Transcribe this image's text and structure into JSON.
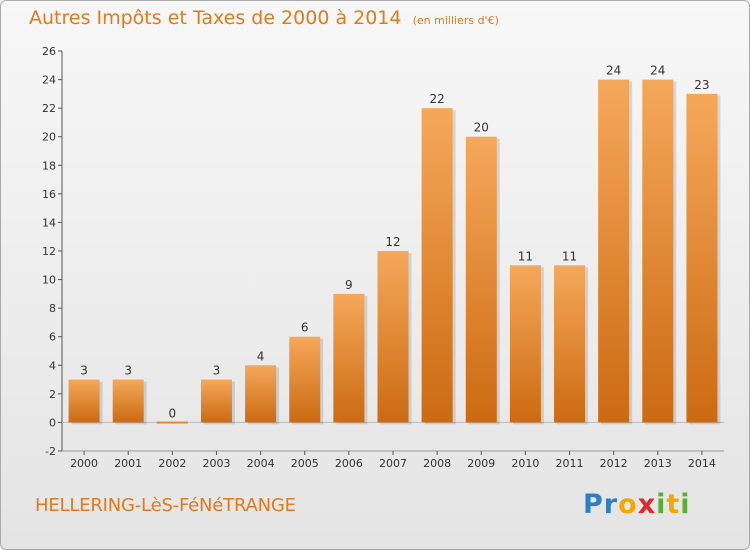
{
  "header": {
    "title": "Autres Impôts et Taxes de 2000 à 2014",
    "subtitle": "(en milliers d'€)"
  },
  "footer": {
    "city": "HELLERING-LèS-FéNéTRANGE",
    "logo": "Proxiti"
  },
  "colors": {
    "title": "#e07a1f",
    "bar_light": "#f5a85a",
    "bar_dark": "#cc6a12",
    "axis": "#555555"
  },
  "chart_data": {
    "type": "bar",
    "title": "Autres Impôts et Taxes de 2000 à 2014",
    "subtitle": "(en milliers d'€)",
    "categories": [
      "2000",
      "2001",
      "2002",
      "2003",
      "2004",
      "2005",
      "2006",
      "2007",
      "2008",
      "2009",
      "2010",
      "2011",
      "2012",
      "2013",
      "2014"
    ],
    "values": [
      3,
      3,
      0,
      3,
      4,
      6,
      9,
      12,
      22,
      20,
      11,
      11,
      24,
      24,
      23
    ],
    "data_labels": [
      "3",
      "3",
      "0",
      "3",
      "4",
      "6",
      "9",
      "12",
      "22",
      "20",
      "11",
      "11",
      "24",
      "24",
      "23"
    ],
    "ylim": [
      -2,
      26
    ],
    "yticks": [
      -2,
      0,
      2,
      4,
      6,
      8,
      10,
      12,
      14,
      16,
      18,
      20,
      22,
      24,
      26
    ],
    "xlabel": "",
    "ylabel": "",
    "grid": false,
    "legend": "none"
  }
}
